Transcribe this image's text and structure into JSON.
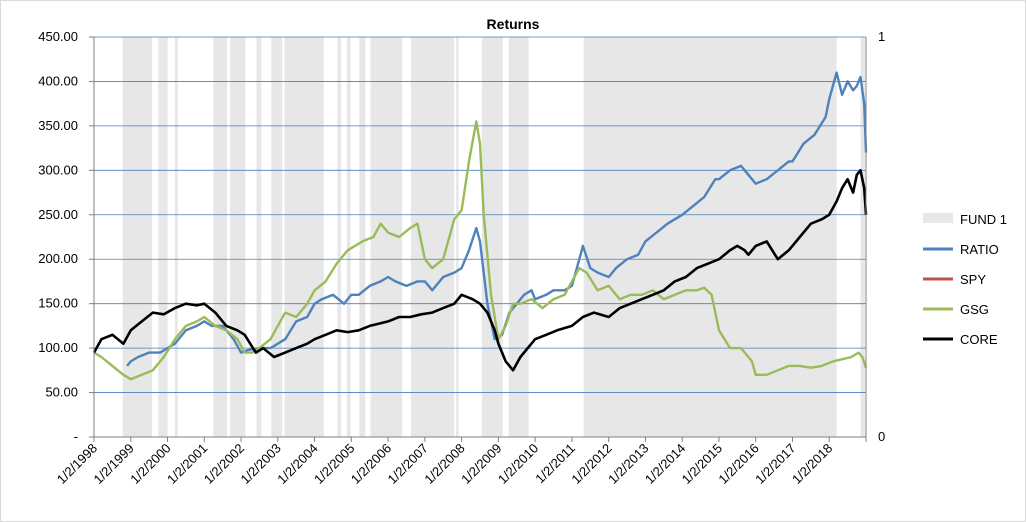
{
  "chart_data": {
    "type": "line",
    "title": "Returns",
    "ylim": [
      0,
      450
    ],
    "y_right_ticks": [
      "0",
      "1"
    ],
    "ytick_labels": [
      "-",
      "50.00",
      "100.00",
      "150.00",
      "200.00",
      "250.00",
      "300.00",
      "350.00",
      "400.00",
      "450.00"
    ],
    "xtick_labels": [
      "1/2/1998",
      "1/2/1999",
      "1/2/2000",
      "1/2/2001",
      "1/2/2002",
      "1/2/2003",
      "1/2/2004",
      "1/2/2005",
      "1/2/2006",
      "1/2/2007",
      "1/2/2008",
      "1/2/2009",
      "1/2/2010",
      "1/2/2011",
      "1/2/2012",
      "1/2/2013",
      "1/2/2014",
      "1/2/2015",
      "1/2/2016",
      "1/2/2017",
      "1/2/2018"
    ],
    "x_range": [
      1998.0,
      2019.0
    ],
    "grid": true,
    "legend_position": "right",
    "fund_periods": [
      [
        1998.78,
        1999.58
      ],
      [
        1999.75,
        2000.0
      ],
      [
        2000.2,
        2000.28
      ],
      [
        2001.25,
        2001.62
      ],
      [
        2001.7,
        2002.12
      ],
      [
        2002.42,
        2002.55
      ],
      [
        2002.82,
        2003.12
      ],
      [
        2003.18,
        2004.25
      ],
      [
        2004.62,
        2004.72
      ],
      [
        2004.88,
        2004.98
      ],
      [
        2005.22,
        2005.38
      ],
      [
        2005.52,
        2006.38
      ],
      [
        2006.62,
        2007.8
      ],
      [
        2007.85,
        2007.92
      ],
      [
        2008.55,
        2009.12
      ],
      [
        2009.28,
        2009.82
      ],
      [
        2011.32,
        2018.2
      ],
      [
        2018.85,
        2018.97
      ]
    ],
    "series": [
      {
        "name": "FUND 1",
        "kind": "band",
        "color": "#e7e7e7",
        "values": []
      },
      {
        "name": "RATIO",
        "color": "#4f81bd",
        "x": [
          1998.9,
          1999.0,
          1999.2,
          1999.5,
          1999.8,
          2000.0,
          2000.2,
          2000.5,
          2000.8,
          2001.0,
          2001.2,
          2001.5,
          2001.8,
          2002.0,
          2002.2,
          2002.5,
          2002.8,
          2003.0,
          2003.2,
          2003.5,
          2003.8,
          2004.0,
          2004.2,
          2004.5,
          2004.8,
          2005.0,
          2005.2,
          2005.5,
          2005.8,
          2006.0,
          2006.2,
          2006.5,
          2006.8,
          2007.0,
          2007.2,
          2007.5,
          2007.8,
          2008.0,
          2008.2,
          2008.4,
          2008.5,
          2008.7,
          2008.9,
          2009.1,
          2009.3,
          2009.5,
          2009.7,
          2009.9,
          2010.0,
          2010.3,
          2010.5,
          2010.8,
          2011.0,
          2011.2,
          2011.3,
          2011.5,
          2011.7,
          2012.0,
          2012.2,
          2012.5,
          2012.8,
          2013.0,
          2013.3,
          2013.6,
          2014.0,
          2014.3,
          2014.6,
          2014.9,
          2015.0,
          2015.3,
          2015.6,
          2015.8,
          2016.0,
          2016.3,
          2016.6,
          2016.9,
          2017.0,
          2017.3,
          2017.6,
          2017.9,
          2018.0,
          2018.1,
          2018.2,
          2018.35,
          2018.5,
          2018.65,
          2018.75,
          2018.85,
          2018.95,
          2019.0
        ],
        "values": [
          80,
          85,
          90,
          95,
          95,
          100,
          105,
          120,
          125,
          130,
          125,
          125,
          110,
          95,
          98,
          100,
          100,
          105,
          110,
          130,
          135,
          150,
          155,
          160,
          150,
          160,
          160,
          170,
          175,
          180,
          175,
          170,
          175,
          175,
          165,
          180,
          185,
          190,
          210,
          235,
          220,
          150,
          110,
          115,
          140,
          150,
          160,
          165,
          155,
          160,
          165,
          165,
          170,
          200,
          215,
          190,
          185,
          180,
          190,
          200,
          205,
          220,
          230,
          240,
          250,
          260,
          270,
          290,
          290,
          300,
          305,
          295,
          285,
          290,
          300,
          310,
          310,
          330,
          340,
          360,
          380,
          395,
          410,
          385,
          400,
          390,
          395,
          405,
          375,
          320
        ]
      },
      {
        "name": "SPY",
        "color": "#c0504d",
        "x": [],
        "values": []
      },
      {
        "name": "GSG",
        "color": "#9bbb59",
        "x": [
          1998.0,
          1998.2,
          1998.5,
          1998.8,
          1999.0,
          1999.3,
          1999.6,
          1999.9,
          2000.2,
          2000.5,
          2000.8,
          2001.0,
          2001.3,
          2001.6,
          2001.9,
          2002.1,
          2002.3,
          2002.5,
          2002.8,
          2003.0,
          2003.2,
          2003.5,
          2003.8,
          2004.0,
          2004.3,
          2004.6,
          2004.9,
          2005.1,
          2005.3,
          2005.6,
          2005.8,
          2006.0,
          2006.3,
          2006.6,
          2006.8,
          2007.0,
          2007.2,
          2007.5,
          2007.8,
          2008.0,
          2008.2,
          2008.4,
          2008.5,
          2008.6,
          2008.8,
          2009.0,
          2009.2,
          2009.4,
          2009.6,
          2009.9,
          2010.2,
          2010.5,
          2010.8,
          2011.0,
          2011.2,
          2011.4,
          2011.7,
          2012.0,
          2012.3,
          2012.6,
          2012.9,
          2013.2,
          2013.5,
          2013.8,
          2014.1,
          2014.4,
          2014.6,
          2014.8,
          2015.0,
          2015.3,
          2015.6,
          2015.9,
          2016.0,
          2016.3,
          2016.6,
          2016.9,
          2017.2,
          2017.5,
          2017.8,
          2018.1,
          2018.4,
          2018.6,
          2018.8,
          2018.9,
          2019.0
        ],
        "values": [
          95,
          90,
          80,
          70,
          65,
          70,
          75,
          90,
          110,
          125,
          130,
          135,
          125,
          120,
          110,
          95,
          95,
          100,
          110,
          125,
          140,
          135,
          150,
          165,
          175,
          195,
          210,
          215,
          220,
          225,
          240,
          230,
          225,
          235,
          240,
          200,
          190,
          200,
          245,
          255,
          310,
          355,
          330,
          250,
          160,
          110,
          125,
          150,
          150,
          155,
          145,
          155,
          160,
          175,
          190,
          185,
          165,
          170,
          155,
          160,
          160,
          165,
          155,
          160,
          165,
          165,
          168,
          160,
          120,
          100,
          100,
          85,
          70,
          70,
          75,
          80,
          80,
          78,
          80,
          85,
          88,
          90,
          95,
          90,
          78
        ]
      },
      {
        "name": "CORE",
        "color": "#000000",
        "x": [
          1998.0,
          1998.2,
          1998.5,
          1998.8,
          1999.0,
          1999.3,
          1999.6,
          1999.9,
          2000.2,
          2000.5,
          2000.8,
          2001.0,
          2001.3,
          2001.6,
          2001.9,
          2002.1,
          2002.4,
          2002.6,
          2002.9,
          2003.2,
          2003.5,
          2003.8,
          2004.0,
          2004.3,
          2004.6,
          2004.9,
          2005.2,
          2005.5,
          2005.8,
          2006.0,
          2006.3,
          2006.6,
          2006.9,
          2007.2,
          2007.5,
          2007.8,
          2008.0,
          2008.3,
          2008.5,
          2008.7,
          2008.9,
          2009.0,
          2009.2,
          2009.4,
          2009.6,
          2010.0,
          2010.3,
          2010.6,
          2011.0,
          2011.3,
          2011.6,
          2012.0,
          2012.3,
          2012.6,
          2012.9,
          2013.2,
          2013.5,
          2013.8,
          2014.1,
          2014.4,
          2014.7,
          2015.0,
          2015.3,
          2015.5,
          2015.7,
          2015.8,
          2016.0,
          2016.3,
          2016.6,
          2016.9,
          2017.2,
          2017.5,
          2017.8,
          2018.0,
          2018.2,
          2018.35,
          2018.5,
          2018.65,
          2018.75,
          2018.85,
          2018.95,
          2019.0
        ],
        "values": [
          95,
          110,
          115,
          105,
          120,
          130,
          140,
          138,
          145,
          150,
          148,
          150,
          140,
          125,
          120,
          115,
          95,
          100,
          90,
          95,
          100,
          105,
          110,
          115,
          120,
          118,
          120,
          125,
          128,
          130,
          135,
          135,
          138,
          140,
          145,
          150,
          160,
          155,
          150,
          140,
          120,
          105,
          85,
          75,
          90,
          110,
          115,
          120,
          125,
          135,
          140,
          135,
          145,
          150,
          155,
          160,
          165,
          175,
          180,
          190,
          195,
          200,
          210,
          215,
          210,
          205,
          215,
          220,
          200,
          210,
          225,
          240,
          245,
          250,
          265,
          280,
          290,
          275,
          295,
          300,
          280,
          250
        ]
      }
    ]
  }
}
